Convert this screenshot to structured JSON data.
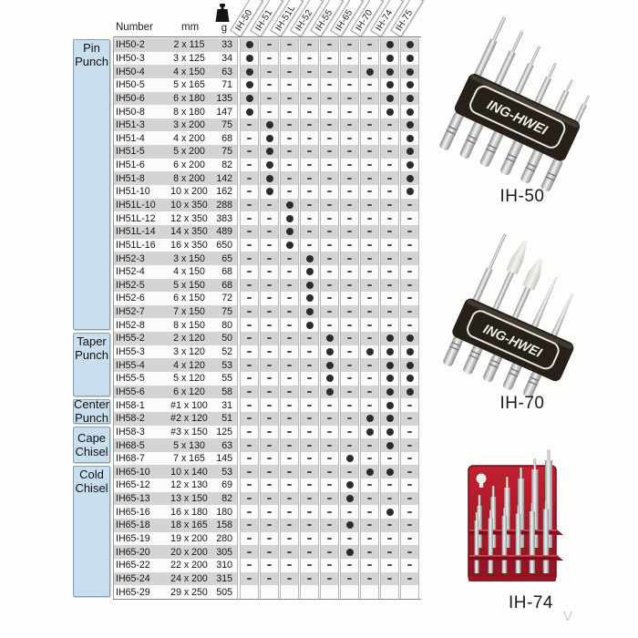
{
  "page": {
    "watermark": "V"
  },
  "table": {
    "headers": {
      "number": "Number",
      "mm": "mm",
      "g": "g"
    },
    "set_columns": [
      "IH-50",
      "IH-51",
      "IH-51L",
      "IH-52",
      "IH-55",
      "IH-65",
      "IH-70",
      "IH-74",
      "IH-75"
    ],
    "legend": {
      "included": "dot",
      "not_included": "dash",
      "empty": null
    },
    "groups": [
      {
        "label": "Pin Punch",
        "row_count": 22
      },
      {
        "label": "Taper Punch",
        "row_count": 5
      },
      {
        "label": "Center Punch",
        "row_count": 2
      },
      {
        "label": "Cape Chisel",
        "row_count": 3
      },
      {
        "label": "Cold Chisel",
        "row_count": 10
      }
    ],
    "rows": [
      {
        "number": "IH50-2",
        "mm": "2 x 115",
        "g": "33",
        "sets": [
          1,
          0,
          0,
          0,
          0,
          0,
          0,
          1,
          1
        ]
      },
      {
        "number": "IH50-3",
        "mm": "3 x 125",
        "g": "34",
        "sets": [
          1,
          0,
          0,
          0,
          0,
          0,
          0,
          1,
          1
        ]
      },
      {
        "number": "IH50-4",
        "mm": "4 x 150",
        "g": "63",
        "sets": [
          1,
          0,
          0,
          0,
          0,
          0,
          1,
          1,
          1
        ]
      },
      {
        "number": "IH50-5",
        "mm": "5 x 165",
        "g": "71",
        "sets": [
          1,
          0,
          0,
          0,
          0,
          0,
          0,
          1,
          1
        ]
      },
      {
        "number": "IH50-6",
        "mm": "6 x 180",
        "g": "135",
        "sets": [
          1,
          0,
          0,
          0,
          0,
          0,
          0,
          1,
          1
        ]
      },
      {
        "number": "IH50-8",
        "mm": "8 x 180",
        "g": "147",
        "sets": [
          1,
          0,
          0,
          0,
          0,
          0,
          0,
          1,
          1
        ]
      },
      {
        "number": "IH51-3",
        "mm": "3 x 200",
        "g": "75",
        "sets": [
          0,
          1,
          0,
          0,
          0,
          0,
          0,
          0,
          1
        ]
      },
      {
        "number": "IH51-4",
        "mm": "4 x 200",
        "g": "68",
        "sets": [
          0,
          1,
          0,
          0,
          0,
          0,
          0,
          0,
          1
        ]
      },
      {
        "number": "IH51-5",
        "mm": "5 x 200",
        "g": "75",
        "sets": [
          0,
          1,
          0,
          0,
          0,
          0,
          0,
          0,
          1
        ]
      },
      {
        "number": "IH51-6",
        "mm": "6 x 200",
        "g": "82",
        "sets": [
          0,
          1,
          0,
          0,
          0,
          0,
          0,
          0,
          1
        ]
      },
      {
        "number": "IH51-8",
        "mm": "8 x 200",
        "g": "142",
        "sets": [
          0,
          1,
          0,
          0,
          0,
          0,
          0,
          0,
          1
        ]
      },
      {
        "number": "IH51-10",
        "mm": "10 x 200",
        "g": "162",
        "sets": [
          0,
          1,
          0,
          0,
          0,
          0,
          0,
          0,
          1
        ]
      },
      {
        "number": "IH51L-10",
        "mm": "10 x 350",
        "g": "288",
        "sets": [
          0,
          0,
          1,
          0,
          0,
          0,
          0,
          0,
          0
        ]
      },
      {
        "number": "IH51L-12",
        "mm": "12 x 350",
        "g": "383",
        "sets": [
          0,
          0,
          1,
          0,
          0,
          0,
          0,
          0,
          0
        ]
      },
      {
        "number": "IH51L-14",
        "mm": "14 x 350",
        "g": "489",
        "sets": [
          0,
          0,
          1,
          0,
          0,
          0,
          0,
          0,
          0
        ]
      },
      {
        "number": "IH51L-16",
        "mm": "16 x 350",
        "g": "650",
        "sets": [
          0,
          0,
          1,
          0,
          0,
          0,
          0,
          0,
          0
        ]
      },
      {
        "number": "IH52-3",
        "mm": "3 x 150",
        "g": "65",
        "sets": [
          0,
          0,
          0,
          1,
          0,
          0,
          0,
          0,
          0
        ]
      },
      {
        "number": "IH52-4",
        "mm": "4 x 150",
        "g": "68",
        "sets": [
          0,
          0,
          0,
          1,
          0,
          0,
          0,
          0,
          0
        ]
      },
      {
        "number": "IH52-5",
        "mm": "5 x 150",
        "g": "68",
        "sets": [
          0,
          0,
          0,
          1,
          0,
          0,
          0,
          0,
          0
        ]
      },
      {
        "number": "IH52-6",
        "mm": "6 x 150",
        "g": "72",
        "sets": [
          0,
          0,
          0,
          1,
          0,
          0,
          0,
          0,
          0
        ]
      },
      {
        "number": "IH52-7",
        "mm": "7 x 150",
        "g": "75",
        "sets": [
          0,
          0,
          0,
          1,
          0,
          0,
          0,
          0,
          0
        ]
      },
      {
        "number": "IH52-8",
        "mm": "8 x 150",
        "g": "80",
        "sets": [
          0,
          0,
          0,
          1,
          0,
          0,
          0,
          0,
          0
        ]
      },
      {
        "number": "IH55-2",
        "mm": "2 x 120",
        "g": "50",
        "sets": [
          0,
          0,
          0,
          0,
          1,
          0,
          0,
          1,
          1
        ]
      },
      {
        "number": "IH55-3",
        "mm": "3 x 120",
        "g": "52",
        "sets": [
          0,
          0,
          0,
          0,
          1,
          0,
          1,
          1,
          1
        ]
      },
      {
        "number": "IH55-4",
        "mm": "4 x 120",
        "g": "53",
        "sets": [
          0,
          0,
          0,
          0,
          1,
          0,
          0,
          1,
          1
        ]
      },
      {
        "number": "IH55-5",
        "mm": "5 x 120",
        "g": "55",
        "sets": [
          0,
          0,
          0,
          0,
          1,
          0,
          0,
          1,
          1
        ]
      },
      {
        "number": "IH55-6",
        "mm": "6 x 120",
        "g": "58",
        "sets": [
          0,
          0,
          0,
          0,
          1,
          0,
          0,
          1,
          1
        ]
      },
      {
        "number": "IH58-1",
        "mm": "#1 x 100",
        "g": "31",
        "sets": [
          0,
          0,
          0,
          0,
          0,
          0,
          0,
          1,
          0
        ]
      },
      {
        "number": "IH58-2",
        "mm": "#2 x 120",
        "g": "51",
        "sets": [
          0,
          0,
          0,
          0,
          0,
          0,
          1,
          1,
          0
        ]
      },
      {
        "number": "IH58-3",
        "mm": "#3 x 150",
        "g": "125",
        "sets": [
          0,
          0,
          0,
          0,
          0,
          0,
          1,
          1,
          0
        ]
      },
      {
        "number": "IH68-5",
        "mm": "5 x 130",
        "g": "63",
        "sets": [
          0,
          0,
          0,
          0,
          0,
          0,
          0,
          1,
          0
        ]
      },
      {
        "number": "IH68-7",
        "mm": "7 x 165",
        "g": "145",
        "sets": [
          0,
          0,
          0,
          0,
          0,
          1,
          0,
          0,
          0
        ]
      },
      {
        "number": "IH65-10",
        "mm": "10 x 140",
        "g": "53",
        "sets": [
          0,
          0,
          0,
          0,
          0,
          0,
          1,
          1,
          0
        ]
      },
      {
        "number": "IH65-12",
        "mm": "12 x 130",
        "g": "69",
        "sets": [
          0,
          0,
          0,
          0,
          0,
          1,
          0,
          0,
          0
        ]
      },
      {
        "number": "IH65-13",
        "mm": "13 x 150",
        "g": "82",
        "sets": [
          0,
          0,
          0,
          0,
          0,
          1,
          0,
          0,
          0
        ]
      },
      {
        "number": "IH65-16",
        "mm": "16 x 180",
        "g": "180",
        "sets": [
          0,
          0,
          0,
          0,
          0,
          0,
          0,
          1,
          0
        ]
      },
      {
        "number": "IH65-18",
        "mm": "18 x 165",
        "g": "158",
        "sets": [
          0,
          0,
          0,
          0,
          0,
          1,
          0,
          0,
          0
        ]
      },
      {
        "number": "IH65-19",
        "mm": "19 x 200",
        "g": "280",
        "sets": [
          0,
          0,
          0,
          0,
          0,
          0,
          0,
          0,
          0
        ]
      },
      {
        "number": "IH65-20",
        "mm": "20 x 200",
        "g": "305",
        "sets": [
          0,
          0,
          0,
          0,
          0,
          1,
          0,
          0,
          0
        ]
      },
      {
        "number": "IH65-22",
        "mm": "22 x 200",
        "g": "310",
        "sets": [
          0,
          0,
          0,
          0,
          0,
          0,
          0,
          0,
          0
        ]
      },
      {
        "number": "IH65-24",
        "mm": "24 x 200",
        "g": "315",
        "sets": [
          0,
          0,
          0,
          0,
          0,
          0,
          0,
          0,
          0
        ]
      },
      {
        "number": "IH65-29",
        "mm": "29 x 250",
        "g": "505",
        "sets": [
          null,
          null,
          null,
          null,
          null,
          null,
          null,
          null,
          null
        ]
      }
    ]
  },
  "products": [
    {
      "label": "IH-50",
      "brand": "ING-HWEI"
    },
    {
      "label": "IH-70",
      "brand": "ING-HWEI"
    },
    {
      "label": "IH-74"
    }
  ]
}
